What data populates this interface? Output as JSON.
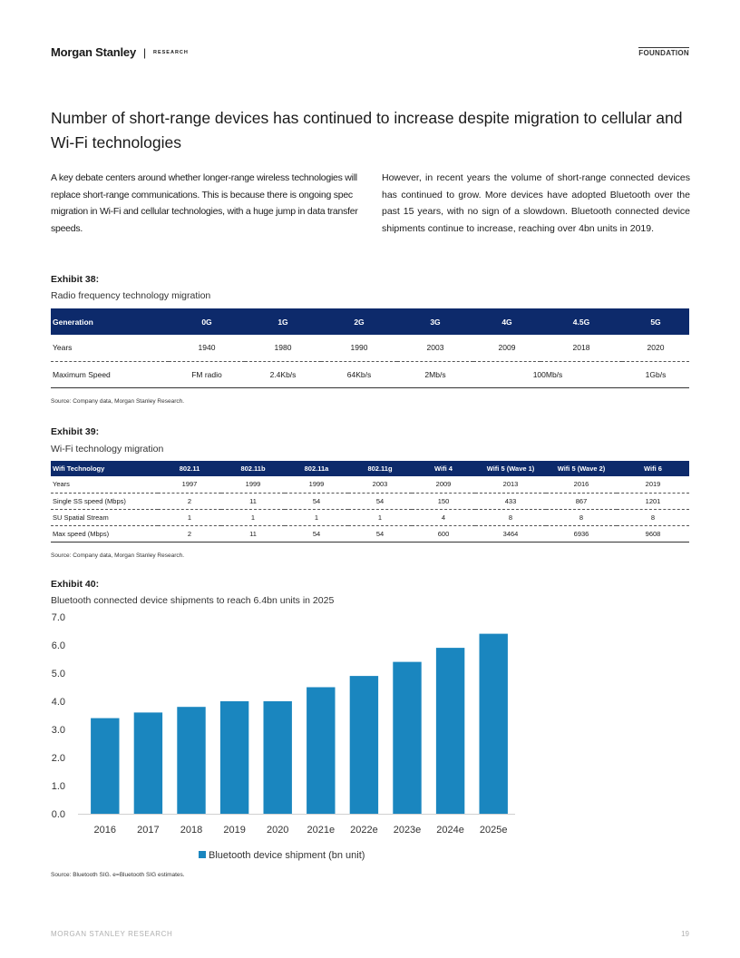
{
  "header": {
    "brand": "Morgan Stanley",
    "separator": "|",
    "section": "RESEARCH",
    "tag": "FOUNDATION"
  },
  "headline": "Number of short-range devices has continued to increase despite migration to cellular and Wi-Fi technologies",
  "body": {
    "left": "A key debate centers around whether longer-range wireless technologies will replace short-range communications. This is because there is ongoing spec migration in Wi-Fi and cellular technologies, with a huge jump in data transfer speeds.",
    "right": "However, in recent years the volume of short-range connected devices has continued to grow. More devices have adopted Bluetooth over the past 15 years, with no sign of a slowdown. Bluetooth connected device shipments continue to increase, reaching over 4bn units in 2019."
  },
  "exhibit38": {
    "label": "Exhibit 38:",
    "title": "Radio frequency technology migration",
    "headers": [
      "Generation",
      "0G",
      "1G",
      "2G",
      "3G",
      "4G",
      "4.5G",
      "5G"
    ],
    "rows": [
      [
        "Years",
        "1940",
        "1980",
        "1990",
        "2003",
        "2009",
        "2018",
        "2020"
      ],
      [
        "Maximum Speed",
        "FM radio",
        "2.4Kb/s",
        "64Kb/s",
        "2Mb/s",
        "100Mb/s",
        "",
        "1Gb/s"
      ]
    ],
    "source": "Source: Company data, Morgan Stanley Research."
  },
  "exhibit39": {
    "label": "Exhibit 39:",
    "title": "Wi-Fi technology migration",
    "headers": [
      "Wifi Technology",
      "802.11",
      "802.11b",
      "802.11a",
      "802.11g",
      "Wifi 4",
      "Wifi 5 (Wave 1)",
      "Wifi 5 (Wave 2)",
      "Wifi 6"
    ],
    "rows": [
      [
        "Years",
        "1997",
        "1999",
        "1999",
        "2003",
        "2009",
        "2013",
        "2016",
        "2019"
      ],
      [
        "Single SS speed (Mbps)",
        "2",
        "11",
        "54",
        "54",
        "150",
        "433",
        "867",
        "1201"
      ],
      [
        "SU Spatial Stream",
        "1",
        "1",
        "1",
        "1",
        "4",
        "8",
        "8",
        "8"
      ],
      [
        "Max speed (Mbps)",
        "2",
        "11",
        "54",
        "54",
        "600",
        "3464",
        "6936",
        "9608"
      ]
    ],
    "source": "Source: Company data, Morgan Stanley Research."
  },
  "exhibit40": {
    "label": "Exhibit 40:",
    "title": "Bluetooth connected device shipments to reach 6.4bn units in 2025",
    "source": "Source: Bluetooth SIG. e=Bluetooth SIG estimates."
  },
  "chart_data": {
    "type": "bar",
    "categories": [
      "2016",
      "2017",
      "2018",
      "2019",
      "2020",
      "2021e",
      "2022e",
      "2023e",
      "2024e",
      "2025e"
    ],
    "series": [
      {
        "name": "Bluetooth device shipment (bn unit)",
        "values": [
          3.4,
          3.6,
          3.8,
          4.0,
          4.0,
          4.5,
          4.9,
          5.4,
          5.9,
          6.4
        ]
      }
    ],
    "ylim": [
      0,
      7
    ],
    "yticks": [
      "0.0",
      "1.0",
      "2.0",
      "3.0",
      "4.0",
      "5.0",
      "6.0",
      "7.0"
    ],
    "grid": false,
    "legend": "bottom",
    "bar_color": "#1a86bf"
  },
  "footer": {
    "left": "MORGAN STANLEY RESEARCH",
    "page": "19"
  }
}
